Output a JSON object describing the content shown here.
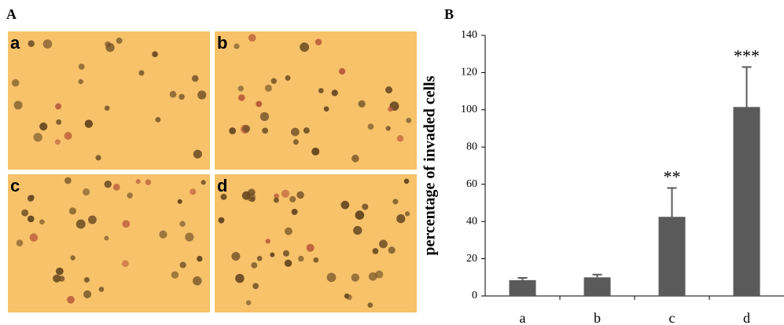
{
  "panel_a": {
    "label": "A",
    "images": [
      "a",
      "b",
      "c",
      "d"
    ]
  },
  "chart_data": {
    "type": "bar",
    "label": "B",
    "ylabel": "percentage of invaded cells",
    "categories": [
      "a",
      "b",
      "c",
      "d"
    ],
    "values": [
      8.5,
      10,
      42.5,
      101.5
    ],
    "errors": [
      1.2,
      1.5,
      15.5,
      21.5
    ],
    "annotations": [
      null,
      null,
      "**",
      "***"
    ],
    "color": "#5a5a5a",
    "ylim": [
      0,
      140
    ],
    "yticks": [
      0,
      20,
      40,
      60,
      80,
      100,
      120,
      140
    ]
  }
}
